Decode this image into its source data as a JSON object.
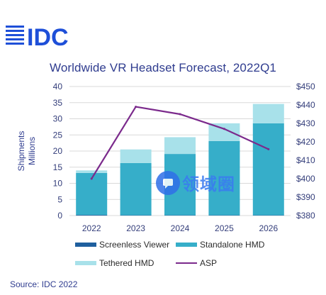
{
  "logo": {
    "text": "IDC",
    "color": "#1e4fd8"
  },
  "watermark": {
    "text": "领域圈",
    "icon": "watermark-badge-icon"
  },
  "chart_data": {
    "type": "bar",
    "title": "Worldwide VR Headset Forecast, 2022Q1",
    "xlabel": "",
    "ylabel": "Shipments\nMillions",
    "ylabel_lines": [
      "Shipments",
      "Millions"
    ],
    "categories": [
      "2022",
      "2023",
      "2024",
      "2025",
      "2026"
    ],
    "stacked": true,
    "ylim": [
      0,
      40
    ],
    "y_ticks": [
      0,
      5,
      10,
      15,
      20,
      25,
      30,
      35,
      40
    ],
    "y2lim": [
      380,
      450
    ],
    "y2_ticks": [
      "$380",
      "$390",
      "$400",
      "$410",
      "$420",
      "$430",
      "$440",
      "$450"
    ],
    "y2_tick_values": [
      380,
      390,
      400,
      410,
      420,
      430,
      440,
      450
    ],
    "grid": true,
    "legend_position": "bottom",
    "series": [
      {
        "name": "Screenless Viewer",
        "values": [
          0.2,
          0.1,
          0.1,
          0.1,
          0.1
        ],
        "color": "#1f5f9e",
        "axis": "left",
        "kind": "bar"
      },
      {
        "name": "Standalone HMD",
        "values": [
          13.0,
          16.2,
          19.0,
          23.0,
          28.5
        ],
        "color": "#36aec9",
        "axis": "left",
        "kind": "bar"
      },
      {
        "name": "Tethered HMD",
        "values": [
          0.8,
          4.2,
          5.2,
          5.5,
          6.0
        ],
        "color": "#a8e1ea",
        "axis": "left",
        "kind": "bar"
      },
      {
        "name": "ASP",
        "values": [
          400,
          439,
          435,
          427,
          416
        ],
        "color": "#7b2a8c",
        "axis": "right",
        "kind": "line"
      }
    ]
  },
  "source": "Source: IDC 2022"
}
